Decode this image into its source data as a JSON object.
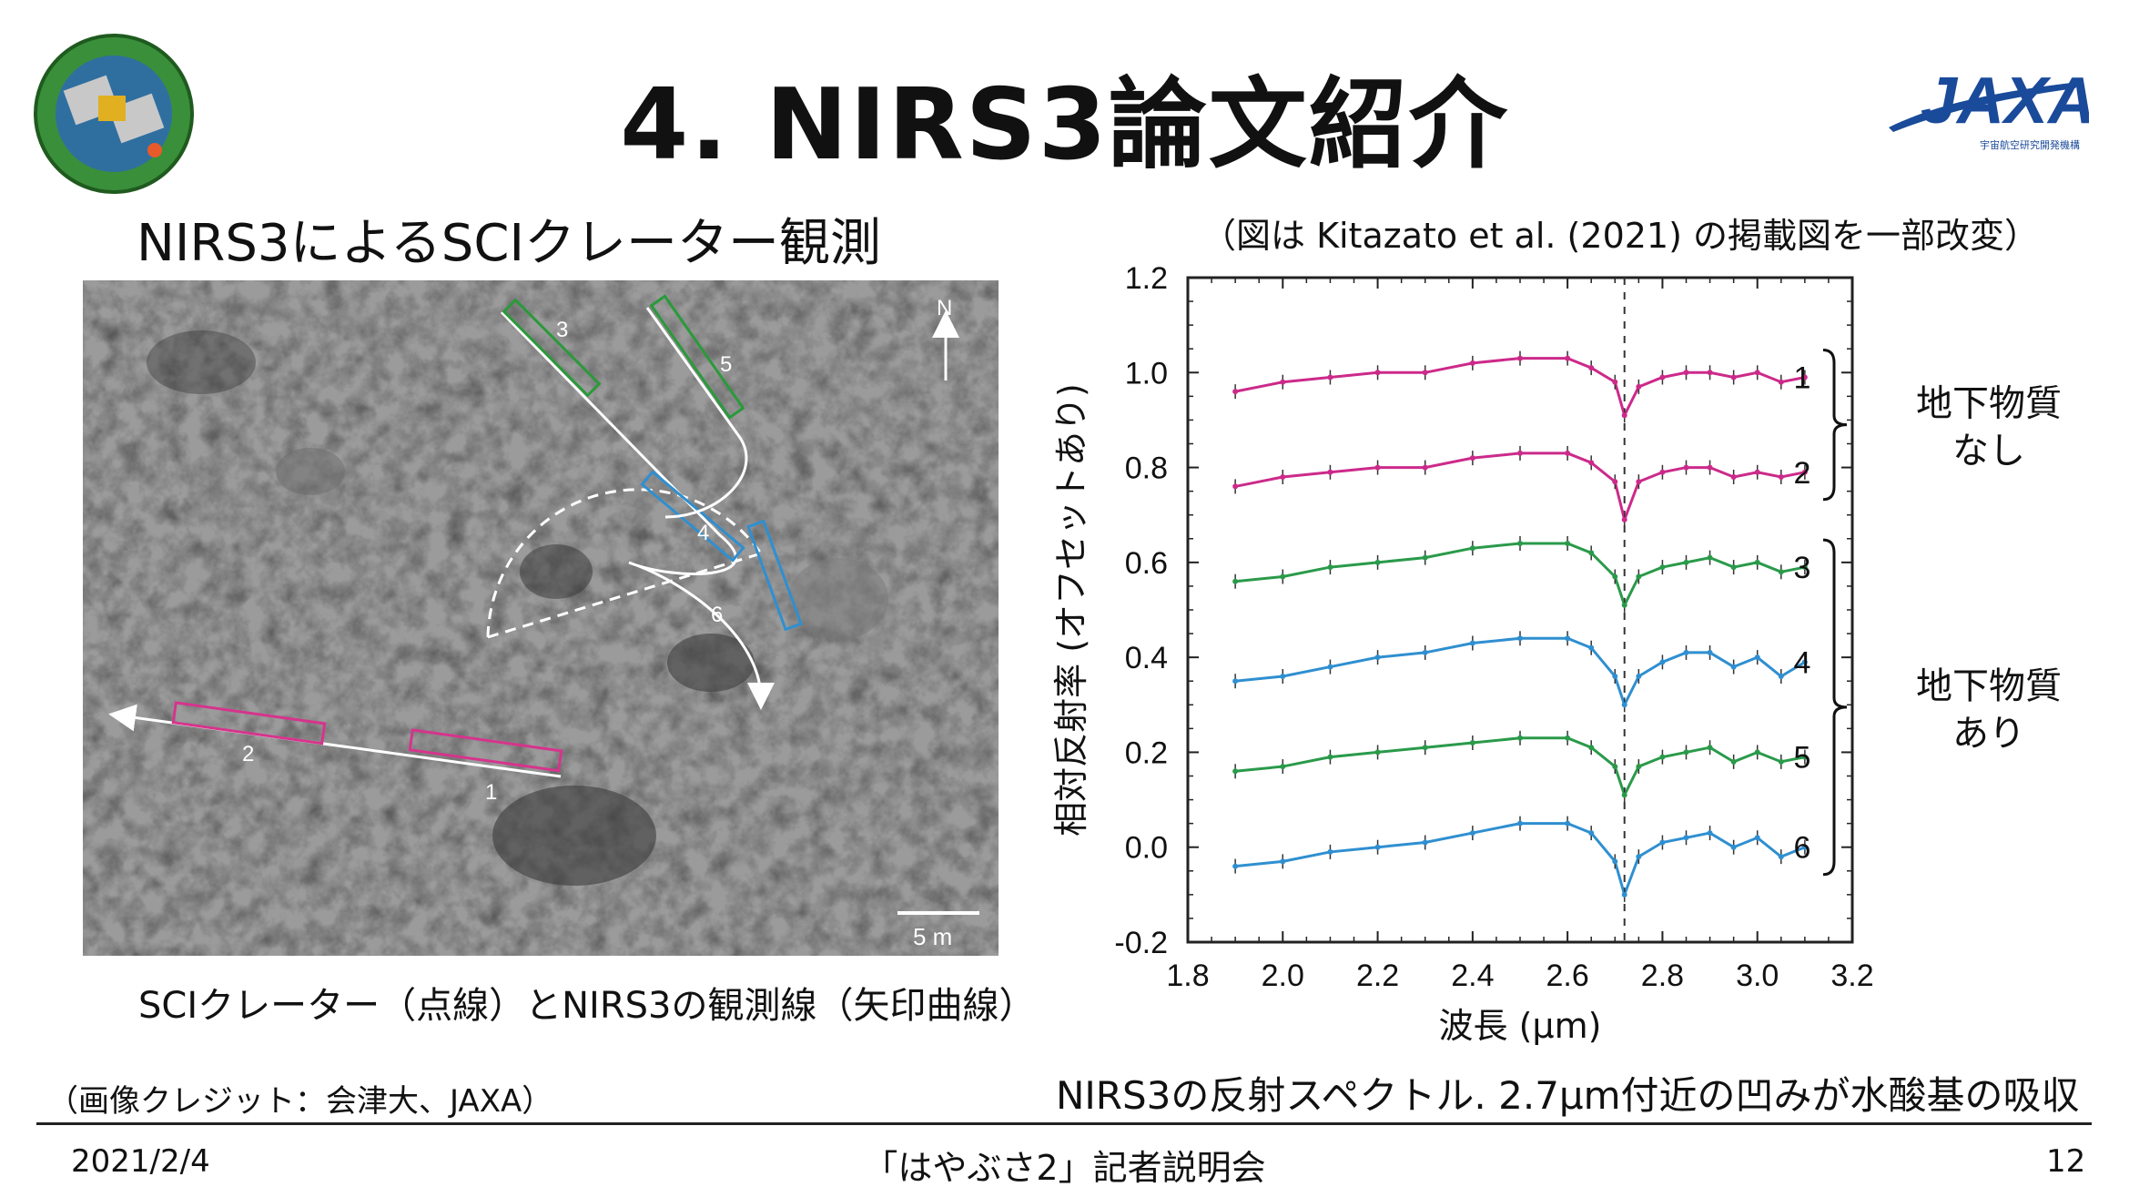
{
  "slide": {
    "title": "4. NIRS3論文紹介",
    "subtitle_left": "NIRS3によるSCIクレーター観測",
    "figure_note": "（図は Kitazato et al. (2021) の掲載図を一部改変）",
    "caption_left": "SCIクレーター（点線）とNIRS3の観測線（矢印曲線）",
    "image_credit": "（画像クレジット：会津大、JAXA）",
    "caption_right": "NIRS3の反射スペクトル. 2.7μm付近の凹みが水酸基の吸収",
    "footer_date": "2021/2/4",
    "footer_center": "「はやぶさ2」記者説明会",
    "page_number": "12"
  },
  "logos": {
    "left_badge_text": "HAYABUSA2",
    "right_logo_text": "JAXA",
    "right_logo_subtext": "宇宙航空研究開発機構"
  },
  "photo": {
    "north_label": "N",
    "scale_label": "5 m",
    "track_labels": [
      "1",
      "2",
      "3",
      "4",
      "5",
      "6"
    ],
    "track_colors": {
      "magenta": "#d6348c",
      "green": "#2a9a3a",
      "blue": "#2f8fd0"
    }
  },
  "chart_data": {
    "type": "line",
    "xlabel": "波長 (μm)",
    "ylabel": "相対反射率 (オフセットあり)",
    "xlim": [
      1.8,
      3.2
    ],
    "ylim": [
      -0.2,
      1.2
    ],
    "xticks": [
      "1.8",
      "2.0",
      "2.2",
      "2.4",
      "2.6",
      "2.8",
      "3.0",
      "3.2"
    ],
    "yticks": [
      "-0.2",
      "0.0",
      "0.2",
      "0.4",
      "0.6",
      "0.8",
      "1.0",
      "1.2"
    ],
    "vline_x": 2.72,
    "x": [
      1.9,
      2.0,
      2.1,
      2.2,
      2.3,
      2.4,
      2.5,
      2.6,
      2.65,
      2.7,
      2.72,
      2.75,
      2.8,
      2.85,
      2.9,
      2.95,
      3.0,
      3.05,
      3.1
    ],
    "series": [
      {
        "name": "1",
        "color": "#cc2a8a",
        "values": [
          0.96,
          0.98,
          0.99,
          1.0,
          1.0,
          1.02,
          1.03,
          1.03,
          1.01,
          0.98,
          0.91,
          0.97,
          0.99,
          1.0,
          1.0,
          0.99,
          1.0,
          0.98,
          0.99
        ]
      },
      {
        "name": "2",
        "color": "#cc2a8a",
        "values": [
          0.76,
          0.78,
          0.79,
          0.8,
          0.8,
          0.82,
          0.83,
          0.83,
          0.81,
          0.77,
          0.69,
          0.77,
          0.79,
          0.8,
          0.8,
          0.78,
          0.79,
          0.78,
          0.79
        ]
      },
      {
        "name": "3",
        "color": "#2a9a4a",
        "values": [
          0.56,
          0.57,
          0.59,
          0.6,
          0.61,
          0.63,
          0.64,
          0.64,
          0.62,
          0.57,
          0.51,
          0.57,
          0.59,
          0.6,
          0.61,
          0.59,
          0.6,
          0.58,
          0.59
        ]
      },
      {
        "name": "4",
        "color": "#2f8fd0",
        "values": [
          0.35,
          0.36,
          0.38,
          0.4,
          0.41,
          0.43,
          0.44,
          0.44,
          0.42,
          0.36,
          0.3,
          0.36,
          0.39,
          0.41,
          0.41,
          0.38,
          0.4,
          0.36,
          0.39
        ]
      },
      {
        "name": "5",
        "color": "#2a9a4a",
        "values": [
          0.16,
          0.17,
          0.19,
          0.2,
          0.21,
          0.22,
          0.23,
          0.23,
          0.21,
          0.17,
          0.11,
          0.17,
          0.19,
          0.2,
          0.21,
          0.18,
          0.2,
          0.18,
          0.19
        ]
      },
      {
        "name": "6",
        "color": "#2f8fd0",
        "values": [
          -0.04,
          -0.03,
          -0.01,
          0.0,
          0.01,
          0.03,
          0.05,
          0.05,
          0.03,
          -0.03,
          -0.1,
          -0.02,
          0.01,
          0.02,
          0.03,
          0.0,
          0.02,
          -0.02,
          0.0
        ]
      }
    ],
    "bracket_labels": [
      {
        "text_line1": "地下物質",
        "text_line2": "なし",
        "series": [
          "1",
          "2"
        ]
      },
      {
        "text_line1": "地下物質",
        "text_line2": "あり",
        "series": [
          "3",
          "4",
          "5",
          "6"
        ]
      }
    ]
  }
}
